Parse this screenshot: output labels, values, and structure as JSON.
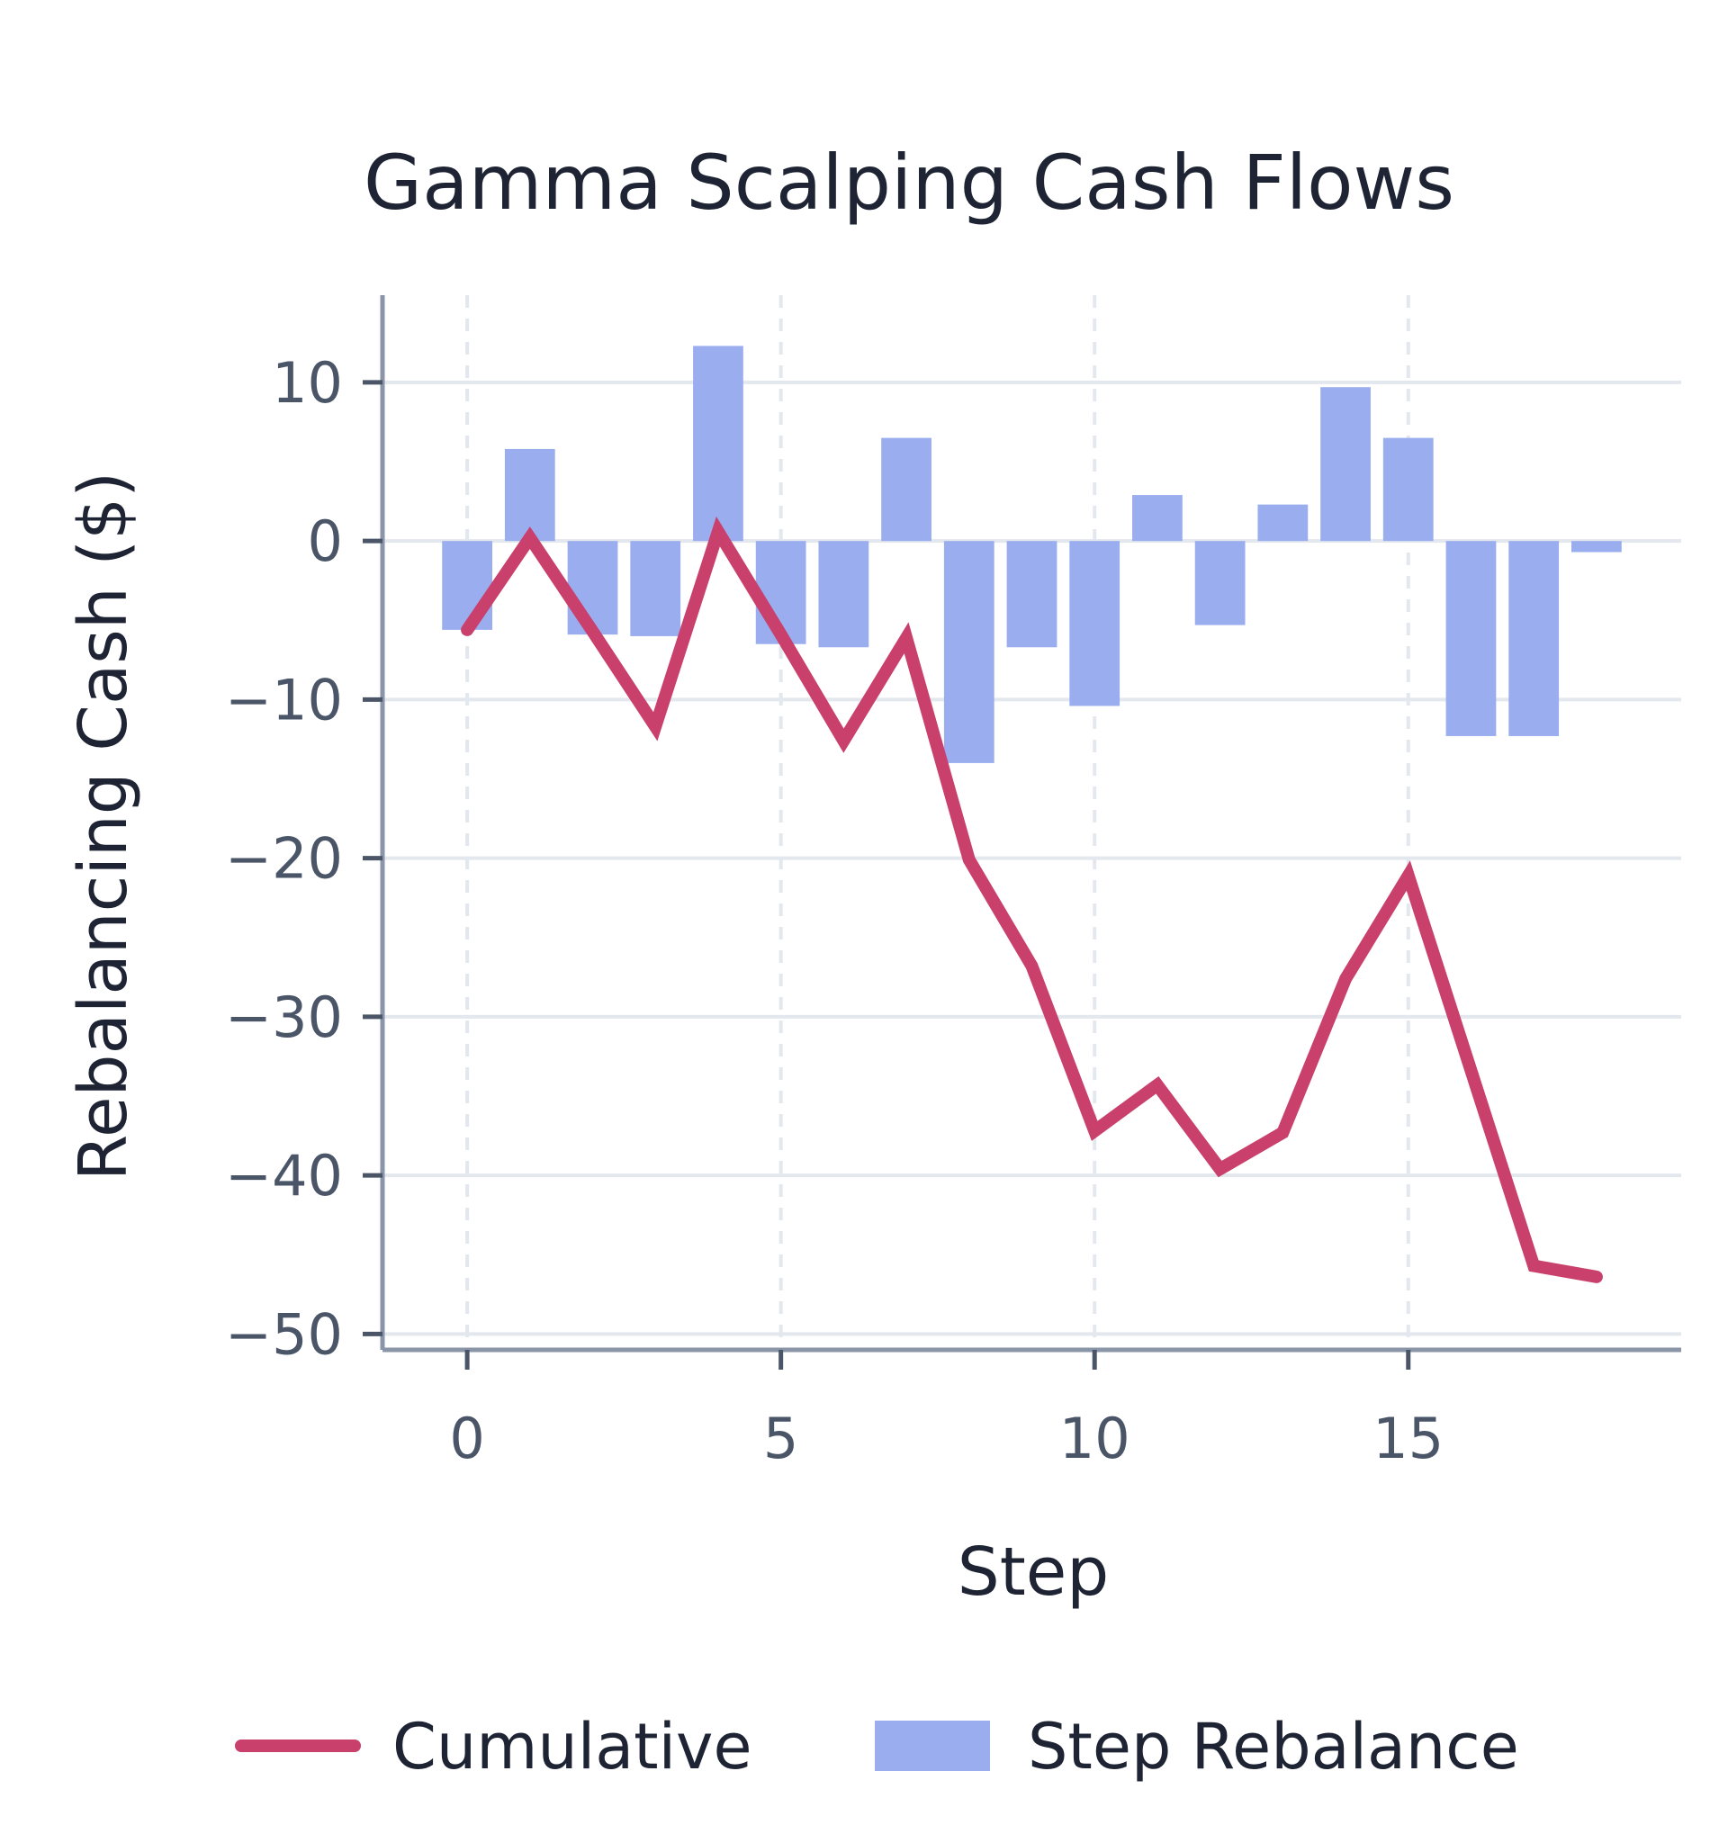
{
  "chart_data": {
    "type": "bar",
    "title": "Gamma Scalping Cash Flows",
    "xlabel": "Step",
    "ylabel": "Rebalancing Cash ($)",
    "x": [
      0,
      1,
      2,
      3,
      4,
      5,
      6,
      7,
      8,
      9,
      10,
      11,
      12,
      13,
      14,
      15,
      16,
      17,
      18
    ],
    "xlim": [
      -1.35,
      19.35
    ],
    "ylim": [
      -51,
      15.5
    ],
    "xticks": [
      0,
      5,
      10,
      15
    ],
    "xtick_labels": [
      "0",
      "5",
      "10",
      "15"
    ],
    "yticks": [
      10,
      0,
      -10,
      -20,
      -30,
      -40,
      -50
    ],
    "ytick_labels": [
      "10",
      "0",
      "−10",
      "−20",
      "−30",
      "−40",
      "−50"
    ],
    "grid": true,
    "legend_position": "bottom",
    "series": [
      {
        "name": "Step Rebalance",
        "type": "bar",
        "color": "#9aaeef",
        "values": [
          -5.6,
          5.8,
          -5.9,
          -6.0,
          12.3,
          -6.5,
          -6.7,
          6.5,
          -14.0,
          -6.7,
          -10.4,
          2.9,
          -5.3,
          2.3,
          9.7,
          6.5,
          -12.3,
          -12.3,
          -0.7
        ]
      },
      {
        "name": "Cumulative",
        "type": "line",
        "color": "#c8406b",
        "values": [
          -5.6,
          0.2,
          -5.7,
          -11.7,
          0.6,
          -5.9,
          -12.6,
          -6.1,
          -20.1,
          -26.8,
          -37.2,
          -34.3,
          -39.6,
          -37.3,
          -27.6,
          -21.1,
          -33.4,
          -45.7,
          -46.4
        ]
      }
    ]
  }
}
